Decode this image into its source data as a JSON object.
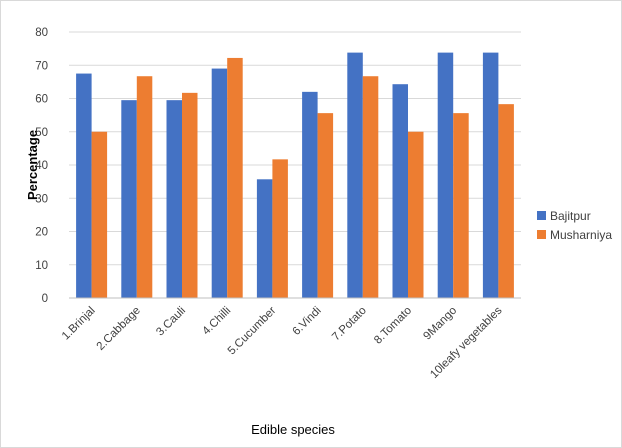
{
  "chart_data": {
    "type": "bar",
    "categories": [
      "1.Brinjal",
      "2.Cabbage",
      "3.Cauli",
      "4.Chilli",
      "5.Cucumber",
      "6.Vindi",
      "7.Potato",
      "8.Tomato",
      "9Mango",
      "10leafy vegetables"
    ],
    "series": [
      {
        "name": "Bajitpur",
        "color": "#4472C4",
        "values": [
          67.5,
          59.5,
          59.5,
          69,
          35.7,
          62,
          73.8,
          64.3,
          73.8,
          73.8
        ]
      },
      {
        "name": "Musharniya",
        "color": "#ED7D31",
        "values": [
          50,
          66.7,
          61.7,
          72.2,
          41.7,
          55.6,
          66.7,
          50,
          55.6,
          58.3
        ]
      }
    ],
    "xlabel": "Edible species",
    "ylabel": "Percentage",
    "ylim": [
      0,
      80
    ],
    "yticks": [
      0,
      10,
      20,
      30,
      40,
      50,
      60,
      70,
      80
    ],
    "grid": true,
    "legend_position": "right"
  }
}
